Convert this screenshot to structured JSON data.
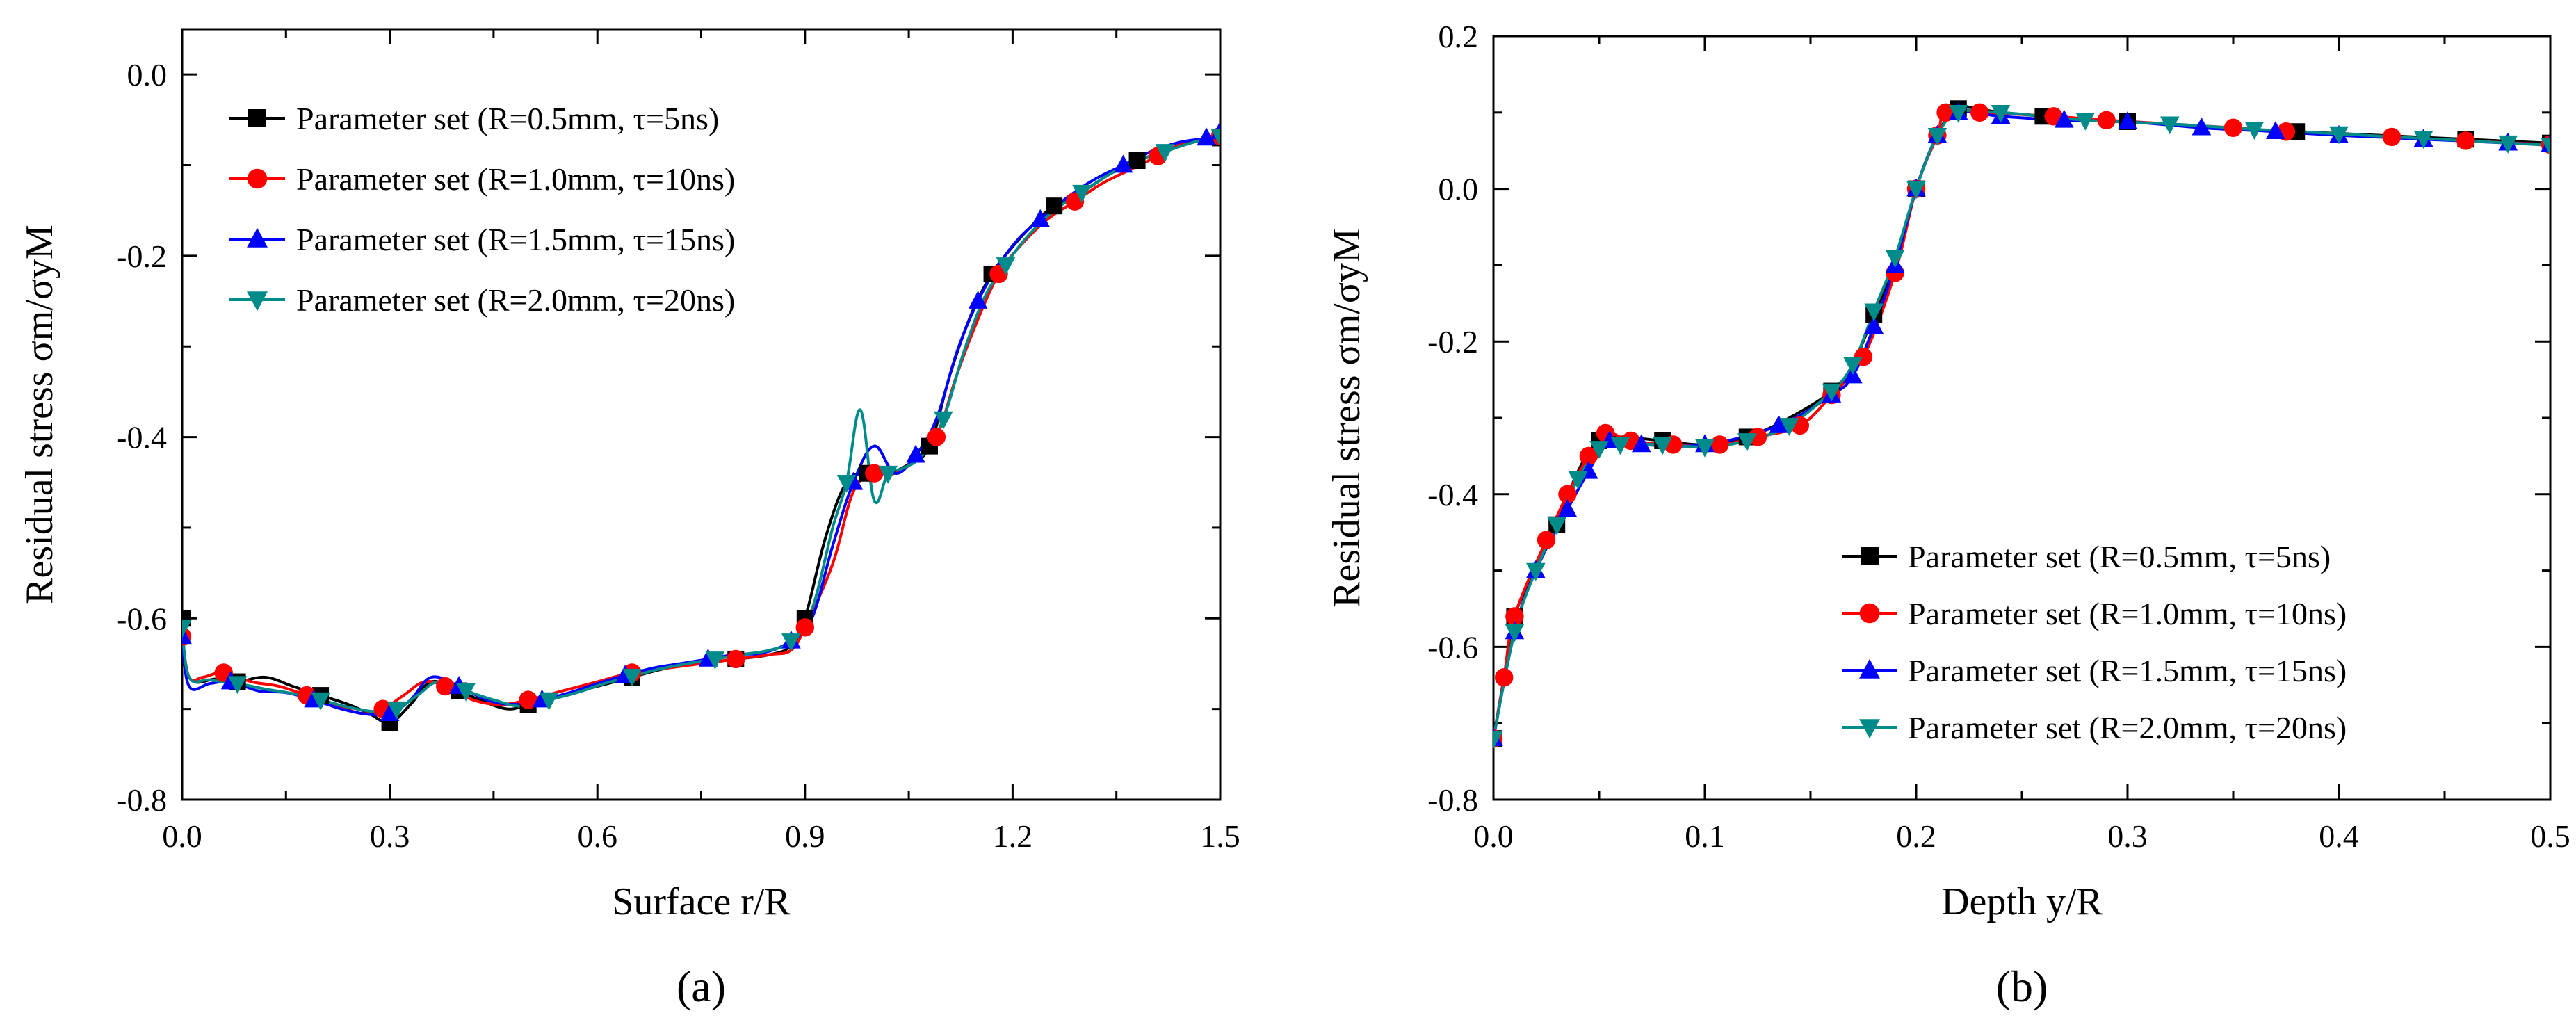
{
  "chart_data": [
    {
      "type": "line",
      "panel_label": "(a)",
      "xlabel": "Surface r/R",
      "ylabel": "Residual stress σm/σyM",
      "xlim": [
        0.0,
        1.5
      ],
      "ylim": [
        -0.8,
        0.05
      ],
      "xticks": [
        0.0,
        0.3,
        0.6,
        0.9,
        1.2,
        1.5
      ],
      "yticks": [
        0.0,
        -0.2,
        -0.4,
        -0.6,
        -0.8
      ],
      "xtick_labels": [
        "0.0",
        "0.3",
        "0.6",
        "0.9",
        "1.2",
        "1.5"
      ],
      "ytick_labels": [
        "0.0",
        "-0.2",
        "-0.4",
        "-0.6",
        "-0.8"
      ],
      "legend_placement": "top-left",
      "series": [
        {
          "name": "Parameter set (R=0.5mm, τ=5ns)",
          "color": "#000000",
          "marker": "square",
          "x": [
            0.0,
            0.01,
            0.05,
            0.08,
            0.12,
            0.16,
            0.2,
            0.24,
            0.27,
            0.3,
            0.33,
            0.36,
            0.4,
            0.43,
            0.47,
            0.5,
            0.55,
            0.6,
            0.65,
            0.7,
            0.75,
            0.8,
            0.85,
            0.88,
            0.9,
            0.93,
            0.96,
            0.99,
            1.02,
            1.05,
            1.08,
            1.11,
            1.14,
            1.17,
            1.2,
            1.23,
            1.26,
            1.3,
            1.34,
            1.38,
            1.42,
            1.46,
            1.5
          ],
          "y": [
            -0.6,
            -0.665,
            -0.667,
            -0.67,
            -0.665,
            -0.675,
            -0.685,
            -0.695,
            -0.705,
            -0.715,
            -0.695,
            -0.67,
            -0.68,
            -0.69,
            -0.7,
            -0.695,
            -0.685,
            -0.675,
            -0.665,
            -0.655,
            -0.65,
            -0.645,
            -0.64,
            -0.63,
            -0.6,
            -0.51,
            -0.45,
            -0.44,
            -0.44,
            -0.43,
            -0.41,
            -0.33,
            -0.265,
            -0.22,
            -0.19,
            -0.165,
            -0.145,
            -0.13,
            -0.11,
            -0.095,
            -0.085,
            -0.075,
            -0.07
          ]
        },
        {
          "name": "Parameter set (R=1.0mm, τ=10ns)",
          "color": "#ff0000",
          "marker": "circle",
          "x": [
            0.0,
            0.01,
            0.03,
            0.06,
            0.1,
            0.14,
            0.18,
            0.22,
            0.26,
            0.29,
            0.32,
            0.35,
            0.38,
            0.42,
            0.46,
            0.5,
            0.55,
            0.6,
            0.65,
            0.7,
            0.75,
            0.8,
            0.85,
            0.88,
            0.9,
            0.94,
            0.97,
            1.0,
            1.03,
            1.06,
            1.09,
            1.12,
            1.15,
            1.18,
            1.21,
            1.25,
            1.29,
            1.33,
            1.37,
            1.41,
            1.45,
            1.5
          ],
          "y": [
            -0.62,
            -0.665,
            -0.665,
            -0.66,
            -0.67,
            -0.675,
            -0.685,
            -0.695,
            -0.705,
            -0.7,
            -0.685,
            -0.67,
            -0.675,
            -0.69,
            -0.695,
            -0.69,
            -0.68,
            -0.67,
            -0.66,
            -0.655,
            -0.65,
            -0.645,
            -0.64,
            -0.635,
            -0.61,
            -0.54,
            -0.46,
            -0.44,
            -0.44,
            -0.425,
            -0.4,
            -0.33,
            -0.27,
            -0.22,
            -0.19,
            -0.16,
            -0.14,
            -0.12,
            -0.105,
            -0.09,
            -0.075,
            -0.068
          ]
        },
        {
          "name": "Parameter set (R=1.5mm, τ=15ns)",
          "color": "#0000ff",
          "marker": "triangle-up",
          "x": [
            0.0,
            0.01,
            0.04,
            0.07,
            0.11,
            0.15,
            0.19,
            0.23,
            0.27,
            0.3,
            0.33,
            0.36,
            0.4,
            0.44,
            0.48,
            0.52,
            0.56,
            0.6,
            0.64,
            0.68,
            0.72,
            0.76,
            0.8,
            0.84,
            0.88,
            0.91,
            0.94,
            0.97,
            1.0,
            1.03,
            1.06,
            1.09,
            1.12,
            1.15,
            1.18,
            1.21,
            1.24,
            1.28,
            1.32,
            1.36,
            1.4,
            1.44,
            1.48,
            1.5
          ],
          "y": [
            -0.62,
            -0.675,
            -0.672,
            -0.67,
            -0.68,
            -0.682,
            -0.69,
            -0.7,
            -0.706,
            -0.705,
            -0.69,
            -0.665,
            -0.675,
            -0.69,
            -0.695,
            -0.69,
            -0.682,
            -0.672,
            -0.663,
            -0.655,
            -0.65,
            -0.645,
            -0.64,
            -0.638,
            -0.625,
            -0.6,
            -0.52,
            -0.45,
            -0.41,
            -0.44,
            -0.42,
            -0.38,
            -0.305,
            -0.25,
            -0.21,
            -0.18,
            -0.16,
            -0.135,
            -0.115,
            -0.1,
            -0.085,
            -0.075,
            -0.07,
            -0.063
          ]
        },
        {
          "name": "Parameter set (R=2.0mm, τ=20ns)",
          "color": "#008b8b",
          "marker": "triangle-down",
          "x": [
            0.0,
            0.01,
            0.04,
            0.08,
            0.12,
            0.16,
            0.2,
            0.24,
            0.28,
            0.31,
            0.34,
            0.37,
            0.41,
            0.45,
            0.49,
            0.53,
            0.57,
            0.61,
            0.65,
            0.69,
            0.73,
            0.77,
            0.81,
            0.85,
            0.88,
            0.91,
            0.94,
            0.96,
            0.98,
            1.0,
            1.02,
            1.04,
            1.07,
            1.1,
            1.13,
            1.16,
            1.19,
            1.22,
            1.26,
            1.3,
            1.34,
            1.38,
            1.42,
            1.46,
            1.5
          ],
          "y": [
            -0.61,
            -0.665,
            -0.668,
            -0.672,
            -0.678,
            -0.683,
            -0.69,
            -0.698,
            -0.703,
            -0.7,
            -0.685,
            -0.67,
            -0.68,
            -0.69,
            -0.697,
            -0.69,
            -0.682,
            -0.672,
            -0.664,
            -0.656,
            -0.65,
            -0.645,
            -0.64,
            -0.635,
            -0.625,
            -0.59,
            -0.5,
            -0.45,
            -0.37,
            -0.47,
            -0.44,
            -0.435,
            -0.42,
            -0.38,
            -0.305,
            -0.245,
            -0.21,
            -0.18,
            -0.15,
            -0.13,
            -0.11,
            -0.095,
            -0.085,
            -0.075,
            -0.068
          ]
        }
      ]
    },
    {
      "type": "line",
      "panel_label": "(b)",
      "xlabel": "Depth y/R",
      "ylabel": "Residual stress σm/σyM",
      "xlim": [
        0.0,
        0.5
      ],
      "ylim": [
        -0.8,
        0.2
      ],
      "xticks": [
        0.0,
        0.1,
        0.2,
        0.3,
        0.4,
        0.5
      ],
      "yticks": [
        0.2,
        0.0,
        -0.2,
        -0.4,
        -0.6,
        -0.8
      ],
      "xtick_labels": [
        "0.0",
        "0.1",
        "0.2",
        "0.3",
        "0.4",
        "0.5"
      ],
      "ytick_labels": [
        "0.2",
        "0.0",
        "-0.2",
        "-0.4",
        "-0.6",
        "-0.8"
      ],
      "legend_placement": "bottom-right",
      "series": [
        {
          "name": "Parameter set (R=0.5mm, τ=5ns)",
          "color": "#000000",
          "marker": "square",
          "x": [
            0.0,
            0.005,
            0.01,
            0.02,
            0.03,
            0.04,
            0.05,
            0.06,
            0.08,
            0.1,
            0.12,
            0.14,
            0.16,
            0.17,
            0.18,
            0.19,
            0.2,
            0.21,
            0.22,
            0.24,
            0.26,
            0.28,
            0.3,
            0.34,
            0.38,
            0.42,
            0.46,
            0.5
          ],
          "y": [
            -0.72,
            -0.64,
            -0.56,
            -0.5,
            -0.44,
            -0.37,
            -0.33,
            -0.325,
            -0.33,
            -0.335,
            -0.325,
            -0.3,
            -0.265,
            -0.23,
            -0.165,
            -0.1,
            0.0,
            0.07,
            0.105,
            0.1,
            0.095,
            0.09,
            0.088,
            0.08,
            0.075,
            0.07,
            0.065,
            0.06
          ]
        },
        {
          "name": "Parameter set (R=1.0mm, τ=10ns)",
          "color": "#ff0000",
          "marker": "circle",
          "x": [
            0.0,
            0.005,
            0.01,
            0.025,
            0.035,
            0.045,
            0.053,
            0.065,
            0.085,
            0.107,
            0.125,
            0.145,
            0.16,
            0.175,
            0.19,
            0.2,
            0.21,
            0.214,
            0.23,
            0.265,
            0.29,
            0.35,
            0.375,
            0.425,
            0.46,
            0.5
          ],
          "y": [
            -0.72,
            -0.64,
            -0.56,
            -0.46,
            -0.4,
            -0.35,
            -0.32,
            -0.33,
            -0.335,
            -0.335,
            -0.325,
            -0.31,
            -0.27,
            -0.22,
            -0.11,
            -0.0,
            0.07,
            0.1,
            0.1,
            0.095,
            0.09,
            0.08,
            0.075,
            0.068,
            0.063,
            0.058
          ]
        },
        {
          "name": "Parameter set (R=1.5mm, τ=15ns)",
          "color": "#0000ff",
          "marker": "triangle-up",
          "x": [
            0.0,
            0.01,
            0.02,
            0.035,
            0.045,
            0.055,
            0.07,
            0.1,
            0.135,
            0.16,
            0.17,
            0.18,
            0.19,
            0.2,
            0.21,
            0.22,
            0.24,
            0.27,
            0.3,
            0.335,
            0.37,
            0.4,
            0.44,
            0.48,
            0.5
          ],
          "y": [
            -0.72,
            -0.58,
            -0.5,
            -0.42,
            -0.37,
            -0.33,
            -0.335,
            -0.335,
            -0.31,
            -0.27,
            -0.245,
            -0.18,
            -0.1,
            -0.0,
            0.07,
            0.1,
            0.095,
            0.09,
            0.088,
            0.08,
            0.075,
            0.07,
            0.065,
            0.06,
            0.058
          ]
        },
        {
          "name": "Parameter set (R=2.0mm, τ=20ns)",
          "color": "#008b8b",
          "marker": "triangle-down",
          "x": [
            0.0,
            0.01,
            0.02,
            0.03,
            0.04,
            0.05,
            0.06,
            0.08,
            0.1,
            0.12,
            0.14,
            0.16,
            0.17,
            0.18,
            0.19,
            0.2,
            0.21,
            0.22,
            0.24,
            0.28,
            0.32,
            0.36,
            0.4,
            0.44,
            0.48,
            0.5
          ],
          "y": [
            -0.72,
            -0.58,
            -0.5,
            -0.44,
            -0.38,
            -0.34,
            -0.335,
            -0.335,
            -0.338,
            -0.33,
            -0.31,
            -0.265,
            -0.23,
            -0.16,
            -0.09,
            -0.0,
            0.07,
            0.1,
            0.1,
            0.09,
            0.085,
            0.078,
            0.072,
            0.066,
            0.06,
            0.057
          ]
        }
      ]
    }
  ]
}
